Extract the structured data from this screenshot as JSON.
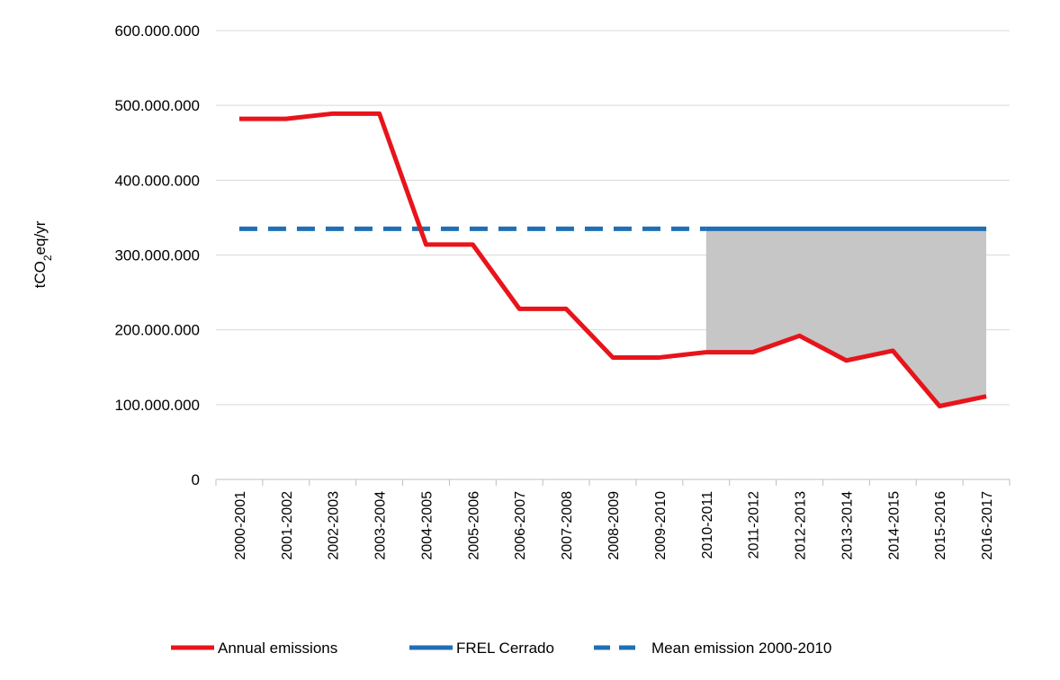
{
  "chart_data": {
    "type": "line",
    "ylabel": {
      "prefix": "tCO",
      "subscript": "2",
      "suffix": "eq/yr"
    },
    "ylim": [
      0,
      600000000
    ],
    "yticks": [
      {
        "value": 0,
        "label": "0"
      },
      {
        "value": 100000000,
        "label": "100.000.000"
      },
      {
        "value": 200000000,
        "label": "200.000.000"
      },
      {
        "value": 300000000,
        "label": "300.000.000"
      },
      {
        "value": 400000000,
        "label": "400.000.000"
      },
      {
        "value": 500000000,
        "label": "500.000.000"
      },
      {
        "value": 600000000,
        "label": "600.000.000"
      }
    ],
    "grid": "horizontal",
    "legend_position": "bottom",
    "categories": [
      "2000-2001",
      "2001-2002",
      "2002-2003",
      "2003-2004",
      "2004-2005",
      "2005-2006",
      "2006-2007",
      "2007-2008",
      "2008-2009",
      "2009-2010",
      "2010-2011",
      "2011-2012",
      "2012-2013",
      "2013-2014",
      "2014-2015",
      "2015-2016",
      "2016-2017"
    ],
    "series": [
      {
        "name": "Annual emissions",
        "color": "#e8141b",
        "style": "solid",
        "values": [
          482000000,
          482000000,
          489000000,
          489000000,
          314000000,
          314000000,
          228000000,
          228000000,
          163000000,
          163000000,
          170000000,
          170000000,
          192000000,
          159000000,
          172000000,
          98000000,
          111000000
        ]
      },
      {
        "name": "FREL Cerrado",
        "color": "#1f6fb5",
        "style": "solid",
        "values": [
          null,
          null,
          null,
          null,
          null,
          null,
          null,
          null,
          null,
          null,
          335000000,
          335000000,
          335000000,
          335000000,
          335000000,
          335000000,
          335000000
        ]
      },
      {
        "name": "Mean emission 2000-2010",
        "color": "#1f6fb5",
        "style": "dashed",
        "values": [
          335000000,
          335000000,
          335000000,
          335000000,
          335000000,
          335000000,
          335000000,
          335000000,
          335000000,
          335000000,
          335000000,
          null,
          null,
          null,
          null,
          null,
          null
        ]
      }
    ],
    "shaded_area": {
      "color": "#c6c6c6",
      "between": [
        "FREL Cerrado",
        "Annual emissions"
      ],
      "from_category": "2010-2011",
      "to_category": "2016-2017"
    }
  }
}
